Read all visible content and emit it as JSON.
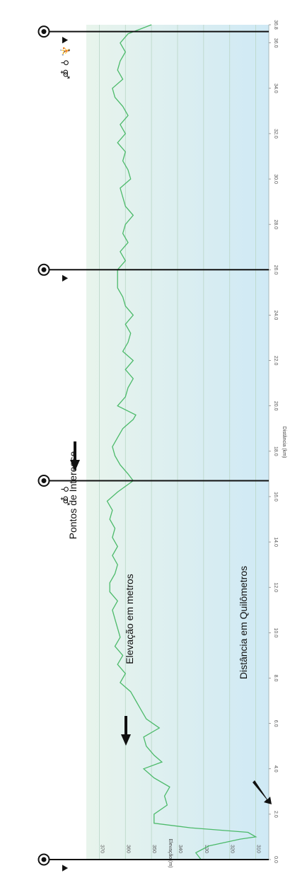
{
  "annotations": {
    "points_of_interest": "Pontos de Interesse",
    "elevation_meters": "Elevação em metros",
    "distance_km": "Distância em Quilômetros"
  },
  "poi_markers": [
    {
      "km": 0.0,
      "icons": [
        "viewpoint-icon",
        "cycling-icon",
        "water-tap-icon",
        "restroom-icon"
      ]
    },
    {
      "km": 16.7,
      "icons": [
        "water-tap-icon",
        "restroom-icon"
      ]
    },
    {
      "km": 26.0,
      "icons": [
        "viewpoint-icon"
      ]
    },
    {
      "km": 36.5,
      "icons": [
        "viewpoint-icon",
        "cycling-icon",
        "water-tap-icon",
        "restroom-icon"
      ]
    }
  ],
  "colors": {
    "line": "#4cba6a",
    "band_top": "#cfe9f5",
    "band_bottom": "#e8f4ec",
    "axis": "#111111"
  },
  "chart_data": {
    "type": "line",
    "orientation": "rotated-90",
    "xlabel": "Distância (km)",
    "ylabel": "Elevação (m)",
    "xlim": [
      0,
      36.8
    ],
    "ylim": [
      305,
      375
    ],
    "x_ticks": [
      "0.0",
      "2.0",
      "4.0",
      "6.0",
      "8.0",
      "10.0",
      "12.0",
      "14.0",
      "16.0",
      "18.0",
      "20.0",
      "22.0",
      "24.0",
      "26.0",
      "28.0",
      "30.0",
      "32.0",
      "34.0",
      "36.0",
      "36.8"
    ],
    "y_ticks": [
      "310",
      "320",
      "330",
      "340",
      "350",
      "360",
      "370"
    ],
    "grid": true,
    "series": [
      {
        "x": [
          0.0,
          0.3,
          0.6,
          0.9,
          1.0,
          1.2,
          1.4,
          1.6,
          2.0,
          2.4,
          2.8,
          3.2,
          3.6,
          4.0,
          4.3,
          4.6,
          5.0,
          5.4,
          5.8,
          6.2,
          6.6,
          7.0,
          7.4,
          7.8,
          8.2,
          8.6,
          9.0,
          9.4,
          9.8,
          10.2,
          10.6,
          11.0,
          11.4,
          11.8,
          12.2,
          12.6,
          13.0,
          13.4,
          13.8,
          14.2,
          14.6,
          15.0,
          15.4,
          15.8,
          16.2,
          16.7,
          17.0,
          17.4,
          17.8,
          18.2,
          18.6,
          19.0,
          19.4,
          19.6,
          20.0,
          20.4,
          20.8,
          21.2,
          21.6,
          22.0,
          22.4,
          22.8,
          23.2,
          23.6,
          24.0,
          24.4,
          24.8,
          25.2,
          25.6,
          26.0,
          26.4,
          26.8,
          27.2,
          27.6,
          28.0,
          28.4,
          28.8,
          29.2,
          29.6,
          30.0,
          30.4,
          30.8,
          31.2,
          31.6,
          32.0,
          32.4,
          32.8,
          33.2,
          33.6,
          34.0,
          34.4,
          34.8,
          35.2,
          35.6,
          36.0,
          36.4,
          36.8
        ],
        "y": [
          331,
          333,
          328,
          316,
          310,
          313,
          335,
          349,
          349,
          344,
          345,
          343,
          349,
          353,
          346,
          349,
          352,
          353,
          347,
          352,
          354,
          356,
          358,
          362,
          360,
          363,
          361,
          364,
          362,
          363,
          364,
          365,
          363,
          366,
          366,
          364,
          363,
          365,
          363,
          365,
          364,
          366,
          365,
          367,
          363,
          357,
          359,
          362,
          364,
          365,
          363,
          361,
          357,
          356,
          363,
          360,
          359,
          357,
          360,
          357,
          361,
          359,
          358,
          360,
          357,
          360,
          361,
          363,
          363,
          363,
          360,
          362,
          359,
          361,
          360,
          357,
          360,
          361,
          362,
          358,
          359,
          361,
          360,
          363,
          360,
          362,
          359,
          361,
          364,
          365,
          361,
          363,
          362,
          360,
          362,
          359,
          350
        ]
      }
    ]
  }
}
